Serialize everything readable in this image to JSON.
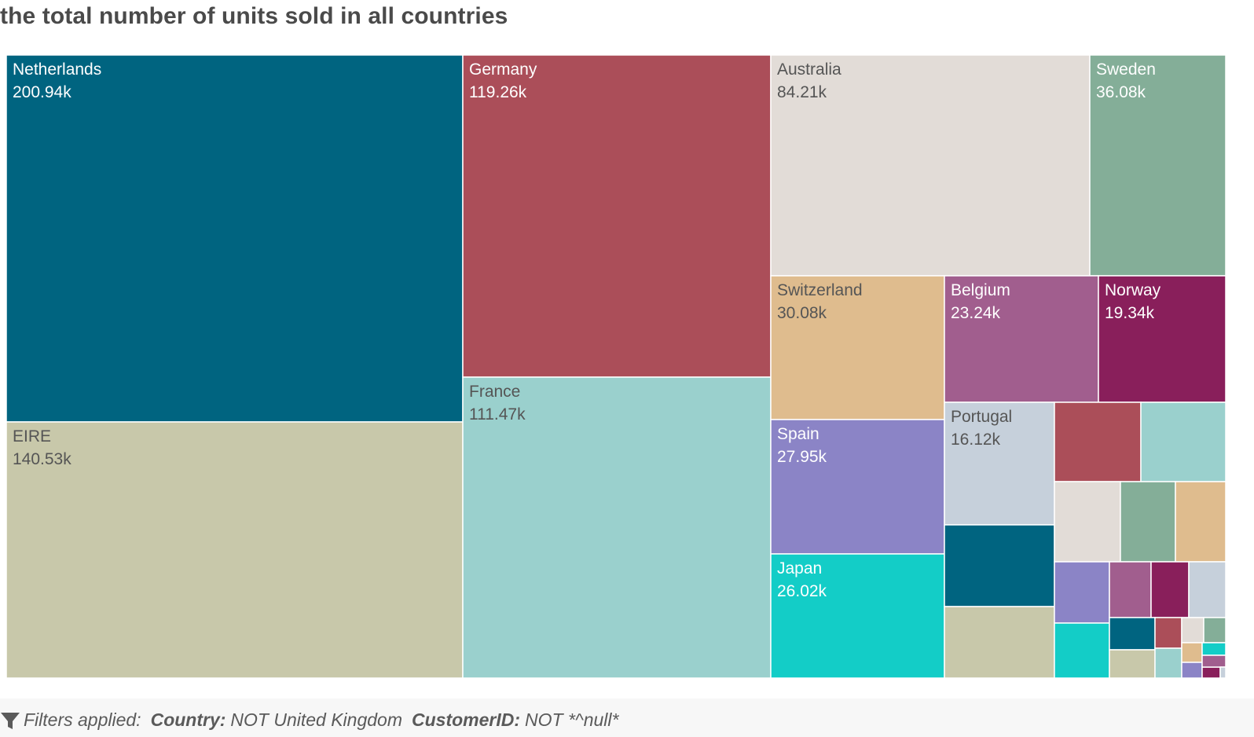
{
  "title": "the total number of units sold in all countries",
  "chart_data": {
    "type": "treemap",
    "title": "the total number of units sold in all countries",
    "unit": "units sold",
    "labeled": [
      {
        "name": "Netherlands",
        "value": 200.94,
        "label": "200.94k",
        "color": "#006480",
        "text_color": "#ffffff"
      },
      {
        "name": "EIRE",
        "value": 140.53,
        "label": "140.53k",
        "color": "#c8c8aa",
        "text_color": "#555555"
      },
      {
        "name": "Germany",
        "value": 119.26,
        "label": "119.26k",
        "color": "#ab4e59",
        "text_color": "#ffffff"
      },
      {
        "name": "France",
        "value": 111.47,
        "label": "111.47k",
        "color": "#9ad0cd",
        "text_color": "#555555"
      },
      {
        "name": "Australia",
        "value": 84.21,
        "label": "84.21k",
        "color": "#e2dcd7",
        "text_color": "#555555"
      },
      {
        "name": "Sweden",
        "value": 36.08,
        "label": "36.08k",
        "color": "#84ae98",
        "text_color": "#ffffff"
      },
      {
        "name": "Switzerland",
        "value": 30.08,
        "label": "30.08k",
        "color": "#dfbc8e",
        "text_color": "#555555"
      },
      {
        "name": "Belgium",
        "value": 23.24,
        "label": "23.24k",
        "color": "#a15e8e",
        "text_color": "#ffffff"
      },
      {
        "name": "Norway",
        "value": 19.34,
        "label": "19.34k",
        "color": "#891f5b",
        "text_color": "#ffffff"
      },
      {
        "name": "Spain",
        "value": 27.95,
        "label": "27.95k",
        "color": "#8b84c6",
        "text_color": "#ffffff"
      },
      {
        "name": "Japan",
        "value": 26.02,
        "label": "26.02k",
        "color": "#13cdc7",
        "text_color": "#ffffff"
      },
      {
        "name": "Portugal",
        "value": 16.12,
        "label": "16.12k",
        "color": "#c6d0db",
        "text_color": "#555555"
      }
    ],
    "unlabeled_colors": [
      "#006480",
      "#c8c8aa",
      "#ab4e59",
      "#9ad0cd",
      "#e2dcd7",
      "#84ae98",
      "#dfbc8e",
      "#8b84c6",
      "#a15e8e",
      "#891f5b",
      "#c6d0db",
      "#13cdc7",
      "#006480",
      "#ab4e59",
      "#e2dcd7",
      "#84ae98",
      "#c8c8aa",
      "#9ad0cd",
      "#dfbc8e",
      "#13cdc7",
      "#8b84c6",
      "#891f5b",
      "#a15e8e",
      "#c6d0db"
    ]
  },
  "filters": {
    "label": "Filters applied:",
    "items": [
      {
        "key": "Country:",
        "value": "NOT United Kingdom"
      },
      {
        "key": "CustomerID:",
        "value": "NOT *^null*"
      }
    ],
    "icon": "filter-icon"
  }
}
